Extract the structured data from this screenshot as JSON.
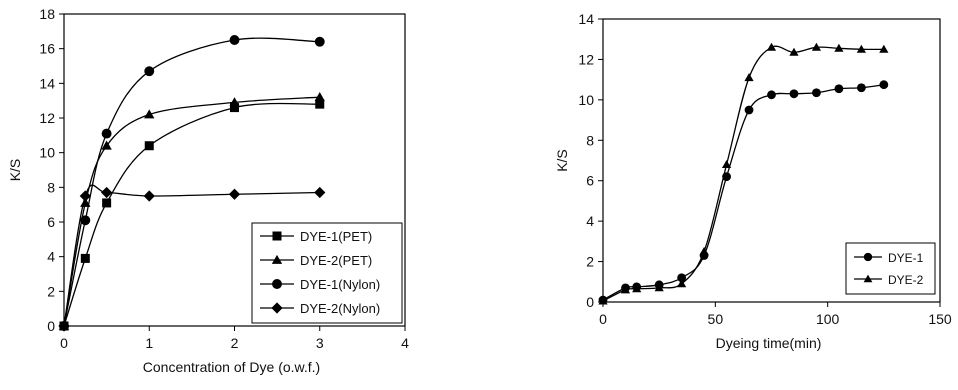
{
  "chart_data": [
    {
      "type": "line",
      "xlabel": "Concentration of Dye (o.w.f.)",
      "ylabel": "K/S",
      "xlim": [
        0,
        4
      ],
      "ylim": [
        0,
        18
      ],
      "xticks": [
        "0",
        "1",
        "2",
        "3",
        "4"
      ],
      "yticks": [
        "0",
        "2",
        "4",
        "6",
        "8",
        "10",
        "12",
        "14",
        "16",
        "18"
      ],
      "legend_position": "bottom-right",
      "grid": false,
      "series": [
        {
          "name": "DYE-1(PET)",
          "marker": "square",
          "x": [
            0,
            0.25,
            0.5,
            1,
            2,
            3
          ],
          "y": [
            0,
            3.9,
            7.1,
            10.4,
            12.6,
            12.8
          ]
        },
        {
          "name": "DYE-2(PET)",
          "marker": "triangle",
          "x": [
            0,
            0.25,
            0.5,
            1,
            2,
            3
          ],
          "y": [
            0,
            7.1,
            10.4,
            12.2,
            12.9,
            13.2
          ]
        },
        {
          "name": "DYE-1(Nylon)",
          "marker": "circle",
          "x": [
            0,
            0.25,
            0.5,
            1,
            2,
            3
          ],
          "y": [
            0,
            6.1,
            11.1,
            14.7,
            16.5,
            16.4
          ]
        },
        {
          "name": "DYE-2(Nylon)",
          "marker": "diamond",
          "x": [
            0,
            0.25,
            0.5,
            1,
            2,
            3
          ],
          "y": [
            0,
            7.5,
            7.7,
            7.5,
            7.6,
            7.7
          ]
        }
      ]
    },
    {
      "type": "line",
      "xlabel": "Dyeing   time(min)",
      "ylabel": "K/S",
      "xlim": [
        0,
        150
      ],
      "ylim": [
        0,
        14
      ],
      "xticks": [
        "0",
        "50",
        "100",
        "150"
      ],
      "yticks": [
        "0",
        "2",
        "4",
        "6",
        "8",
        "10",
        "12",
        "14"
      ],
      "legend_position": "bottom-right",
      "grid": false,
      "series": [
        {
          "name": "DYE-1",
          "marker": "circle",
          "x": [
            0,
            10,
            15,
            25,
            35,
            45,
            55,
            65,
            75,
            85,
            95,
            105,
            115,
            125
          ],
          "y": [
            0.1,
            0.7,
            0.75,
            0.85,
            1.2,
            2.3,
            6.2,
            9.5,
            10.25,
            10.3,
            10.35,
            10.55,
            10.6,
            10.75
          ]
        },
        {
          "name": "DYE-2",
          "marker": "triangle",
          "x": [
            0,
            10,
            15,
            25,
            35,
            45,
            55,
            65,
            75,
            85,
            95,
            105,
            115,
            125
          ],
          "y": [
            0.05,
            0.6,
            0.65,
            0.7,
            0.9,
            2.5,
            6.8,
            11.1,
            12.6,
            12.35,
            12.6,
            12.55,
            12.5,
            12.5
          ]
        }
      ]
    }
  ]
}
